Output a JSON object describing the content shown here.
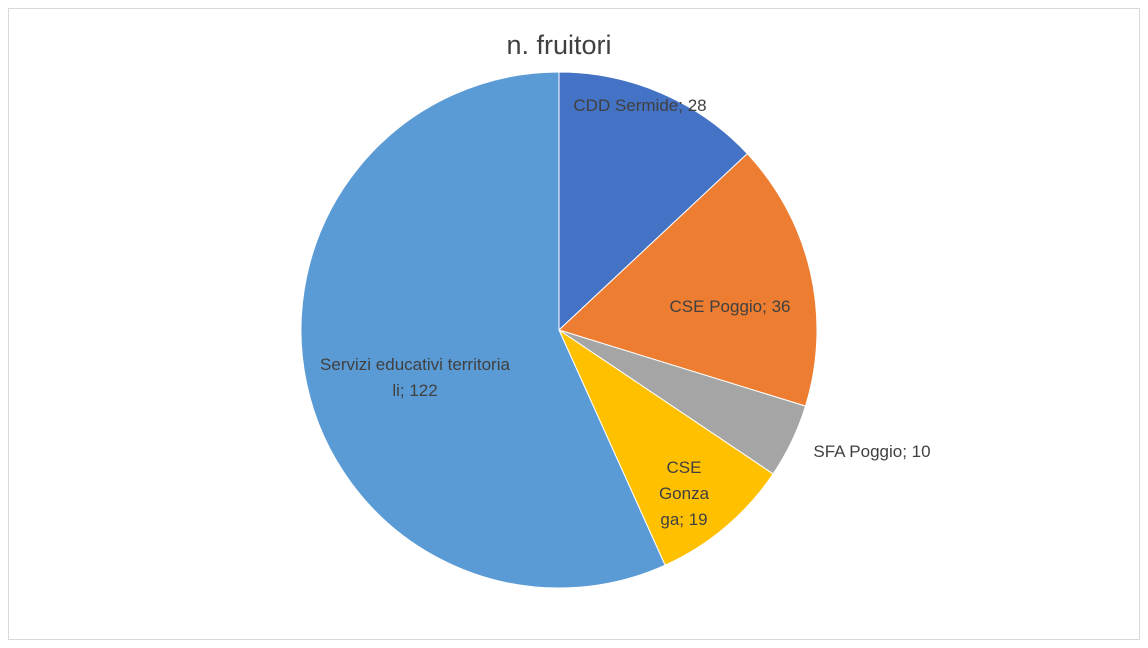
{
  "chart_data": {
    "type": "pie",
    "title": "n. fruitori",
    "values": [
      28,
      36,
      10,
      19,
      122
    ],
    "value_labels": [
      "CDD Sermide; 28",
      "CSE Poggio; 36",
      "SFA  Poggio; 10",
      "CSE Gonzaga; 19",
      "Servizi educativi territoriali; 122"
    ],
    "colors": [
      "#4472c4",
      "#ed7d31",
      "#a5a5a5",
      "#ffc000",
      "#5b9bd5"
    ]
  }
}
